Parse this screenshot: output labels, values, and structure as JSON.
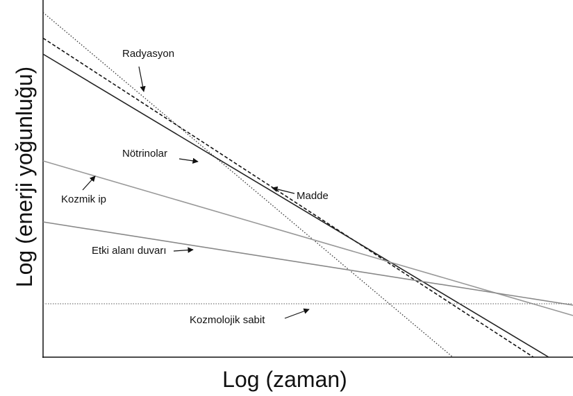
{
  "axes": {
    "x_label": "Log (zaman)",
    "y_label": "Log (enerji yoğunluğu)"
  },
  "curves": [
    {
      "label": "Radyasyon"
    },
    {
      "label": "Nötrinolar"
    },
    {
      "label": "Madde"
    },
    {
      "label": "Kozmik ip"
    },
    {
      "label": "Etki alanı duvarı"
    },
    {
      "label": "Kozmolojik sabit"
    }
  ]
}
